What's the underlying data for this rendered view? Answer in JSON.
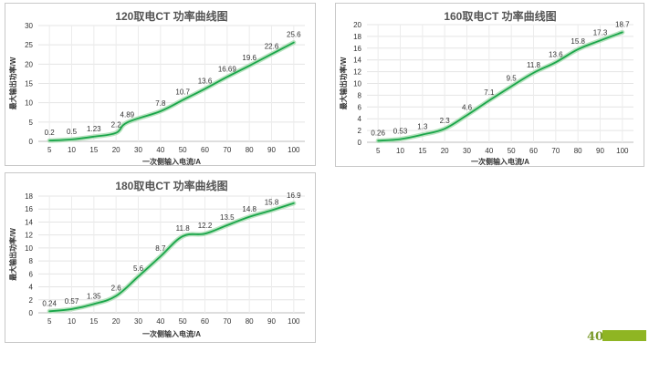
{
  "chart_data": [
    {
      "type": "line",
      "title": "120取电CT 功率曲线图",
      "xlabel": "一次侧输入电流/A",
      "ylabel": "最大输出功率/W",
      "x": [
        5,
        10,
        15,
        20,
        25,
        30,
        40,
        50,
        60,
        70,
        80,
        90,
        100
      ],
      "x_ticks": [
        5,
        10,
        15,
        20,
        30,
        40,
        50,
        60,
        70,
        80,
        90,
        100
      ],
      "values": [
        0.2,
        0.5,
        1.23,
        2.2,
        4.89,
        null,
        7.8,
        10.7,
        13.6,
        16.69,
        19.6,
        22.6,
        25.6
      ],
      "labels": [
        "0.2",
        "0.5",
        "1.23",
        "2.2",
        "4.89",
        "",
        "7.8",
        "10.7",
        "13.6",
        "16.69",
        "19.6",
        "22.6",
        "25.6"
      ],
      "ylim": [
        0,
        30
      ],
      "y_ticks": [
        0,
        5,
        10,
        15,
        20,
        25,
        30
      ],
      "grid": true,
      "line_color": "#1aa64a"
    },
    {
      "type": "line",
      "title": "160取电CT 功率曲线图",
      "xlabel": "一次侧输入电流/A",
      "ylabel": "最大输出功率/W",
      "x": [
        5,
        10,
        15,
        20,
        30,
        40,
        50,
        60,
        70,
        80,
        90,
        100
      ],
      "x_ticks": [
        5,
        10,
        15,
        20,
        30,
        40,
        50,
        60,
        70,
        80,
        90,
        100
      ],
      "values": [
        0.26,
        0.53,
        1.3,
        2.3,
        4.6,
        7.1,
        9.5,
        11.8,
        13.6,
        15.8,
        17.3,
        18.7
      ],
      "labels": [
        "0.26",
        "0.53",
        "1.3",
        "2.3",
        "4.6",
        "7.1",
        "9.5",
        "11.8",
        "13.6",
        "15.8",
        "17.3",
        "18.7"
      ],
      "ylim": [
        0,
        20
      ],
      "y_ticks": [
        0,
        2,
        4,
        6,
        8,
        10,
        12,
        14,
        16,
        18,
        20
      ],
      "grid": true,
      "line_color": "#1aa64a"
    },
    {
      "type": "line",
      "title": "180取电CT 功率曲线图",
      "xlabel": "一次侧输入电流/A",
      "ylabel": "最大输出功率/W",
      "x": [
        5,
        10,
        15,
        20,
        30,
        40,
        50,
        60,
        70,
        80,
        90,
        100
      ],
      "x_ticks": [
        5,
        10,
        15,
        20,
        30,
        40,
        50,
        60,
        70,
        80,
        90,
        100
      ],
      "values": [
        0.24,
        0.57,
        1.35,
        2.6,
        5.6,
        8.7,
        11.8,
        12.2,
        13.5,
        14.8,
        15.8,
        16.9
      ],
      "labels": [
        "0.24",
        "0.57",
        "1.35",
        "2.6",
        "5.6",
        "8.7",
        "11.8",
        "12.2",
        "13.5",
        "14.8",
        "15.8",
        "16.9"
      ],
      "ylim": [
        0,
        18
      ],
      "y_ticks": [
        0,
        2,
        4,
        6,
        8,
        10,
        12,
        14,
        16,
        18
      ],
      "grid": true,
      "line_color": "#1aa64a"
    }
  ],
  "page": {
    "number": "40",
    "accent": "#8fb523"
  }
}
